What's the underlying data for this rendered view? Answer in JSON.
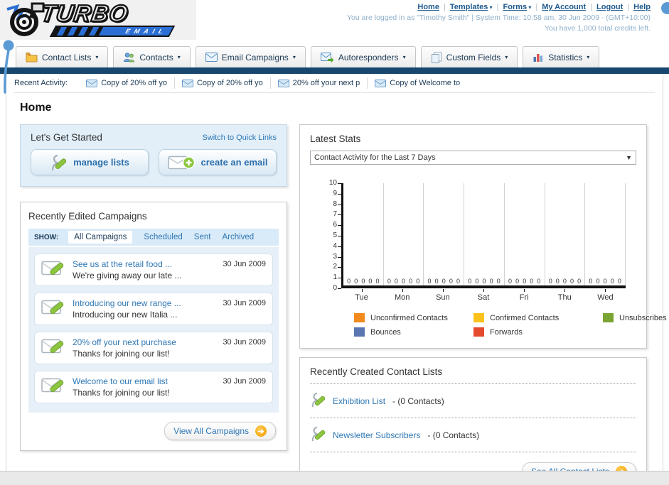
{
  "header": {
    "logo_line1": "TURBO",
    "logo_line2": "EMAIL",
    "nav_links": [
      {
        "label": "Home",
        "dropdown": false
      },
      {
        "label": "Templates",
        "dropdown": true
      },
      {
        "label": "Forms",
        "dropdown": true
      },
      {
        "label": "My Account",
        "dropdown": false
      },
      {
        "label": "Logout",
        "dropdown": false
      },
      {
        "label": "Help",
        "dropdown": false
      }
    ],
    "login_info": "You are logged in as \"Timothy Smith\" | System Time: 10:58 am, 30 Jun 2009 - (GMT+10:00)",
    "credits_info": "You have 1,000 total credits left."
  },
  "nav_tabs": [
    {
      "label": "Contact Lists",
      "icon": "contact-folder-icon"
    },
    {
      "label": "Contacts",
      "icon": "people-icon"
    },
    {
      "label": "Email Campaigns",
      "icon": "envelope-icon"
    },
    {
      "label": "Autoresponders",
      "icon": "envelope-arrow-icon"
    },
    {
      "label": "Custom Fields",
      "icon": "pages-icon"
    },
    {
      "label": "Statistics",
      "icon": "bar-chart-icon"
    }
  ],
  "recent_activity": {
    "label": "Recent Activity:",
    "items": [
      "Copy of 20% off yo",
      "Copy of 20% off yo",
      "20% off your next p",
      "Copy of Welcome to"
    ]
  },
  "page_title": "Home",
  "get_started": {
    "title": "Let's Get Started",
    "switch_link": "Switch to Quick Links",
    "buttons": [
      {
        "label": "manage lists"
      },
      {
        "label": "create an email"
      }
    ]
  },
  "campaigns": {
    "title": "Recently Edited Campaigns",
    "show_label": "SHOW:",
    "filters": [
      "All Campaigns",
      "Scheduled",
      "Sent",
      "Archived"
    ],
    "active_filter": "All Campaigns",
    "items": [
      {
        "title": "See us at the retail food ...",
        "subtitle": "We're giving away our late ...",
        "date": "30 Jun 2009"
      },
      {
        "title": "Introducing our new range ...",
        "subtitle": "Introducing our new Italia ...",
        "date": "30 Jun 2009"
      },
      {
        "title": "20% off your next purchase",
        "subtitle": "Thanks for joining our list!",
        "date": "30 Jun 2009"
      },
      {
        "title": "Welcome to our email list",
        "subtitle": "Thanks for joining our list!",
        "date": "30 Jun 2009"
      }
    ],
    "view_all_label": "View All Campaigns"
  },
  "latest_stats": {
    "title": "Latest Stats",
    "dropdown_value": "Contact Activity for the Last 7 Days"
  },
  "chart_data": {
    "type": "bar",
    "title": "Contact Activity for the Last 7 Days",
    "categories": [
      "Tue",
      "Mon",
      "Sun",
      "Sat",
      "Fri",
      "Thu",
      "Wed"
    ],
    "series": [
      {
        "name": "Unconfirmed Contacts",
        "color": "#F28A1E",
        "values": [
          0,
          0,
          0,
          0,
          0,
          0,
          0
        ]
      },
      {
        "name": "Confirmed Contacts",
        "color": "#FCC21B",
        "values": [
          0,
          0,
          0,
          0,
          0,
          0,
          0
        ]
      },
      {
        "name": "Unsubscribes",
        "color": "#7AA433",
        "values": [
          0,
          0,
          0,
          0,
          0,
          0,
          0
        ]
      },
      {
        "name": "Bounces",
        "color": "#5A76B0",
        "values": [
          0,
          0,
          0,
          0,
          0,
          0,
          0
        ]
      },
      {
        "name": "Forwards",
        "color": "#E64A2E",
        "values": [
          0,
          0,
          0,
          0,
          0,
          0,
          0
        ]
      }
    ],
    "ylim": [
      0,
      10
    ],
    "ytick_step": 1,
    "grid": true,
    "legend_position": "bottom",
    "value_labels_shown": true
  },
  "contact_lists": {
    "title": "Recently Created Contact Lists",
    "items": [
      {
        "name": "Exhibition List",
        "detail": "- (0 Contacts)"
      },
      {
        "name": "Newsletter Subscribers",
        "detail": "- (0 Contacts)"
      }
    ],
    "see_all_label": "See All Contact Lists"
  }
}
